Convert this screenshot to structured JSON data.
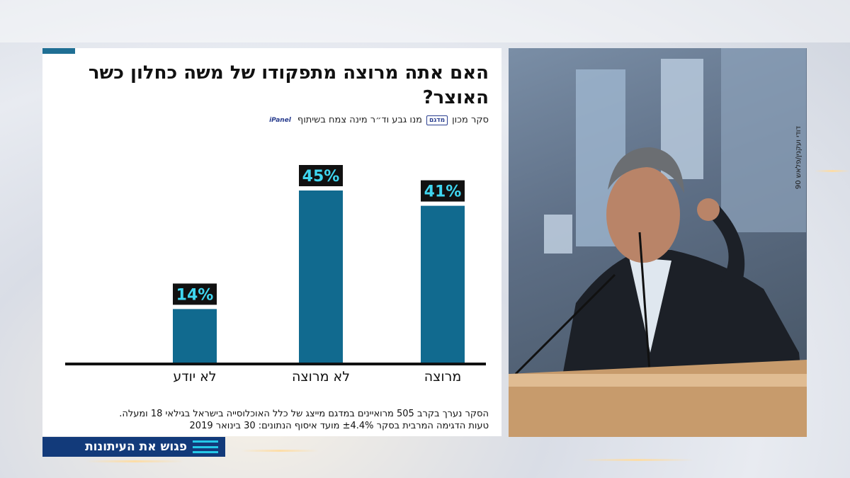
{
  "chart_data": {
    "type": "bar",
    "title": "האם אתה מרוצה מתפקודו של משה כחלון כשר האוצר?",
    "subtitle": "סקר מכון",
    "subtitle_rest": "מנו גבע וד״ר מינה צמח בשיתוף",
    "categories": [
      "מרוצה",
      "לא מרוצה",
      "לא יודע"
    ],
    "values": [
      41,
      45,
      14
    ],
    "value_labels": [
      "41%",
      "45%",
      "14%"
    ],
    "ylim": [
      0,
      50
    ],
    "xlabel": "",
    "ylabel": "",
    "bar_color": "#116a8f",
    "label_bg": "#111111",
    "label_color": "#3fd6f0"
  },
  "logos": {
    "madgam": "מדגם",
    "ipanel": "iPanel"
  },
  "footnote": {
    "line1": "הסקר נערך בקרב 505 מרואיינים במדגם מייצג של כלל האוכלוסייה בישראל בגילאי 18 ומעלה.",
    "line2": "טעות הדגימה המרבית בסקר ±4.4% מועד איסוף הנתונים: 30 בינואר 2019"
  },
  "photo": {
    "credit": "דודי ועקנין/פלאש 90"
  },
  "ribbon": {
    "title": "פגוש את העיתונות"
  },
  "colors": {
    "accent": "#1f6f94",
    "ribbon": "#123a7a",
    "ribbon_icon": "#25c8e8"
  }
}
